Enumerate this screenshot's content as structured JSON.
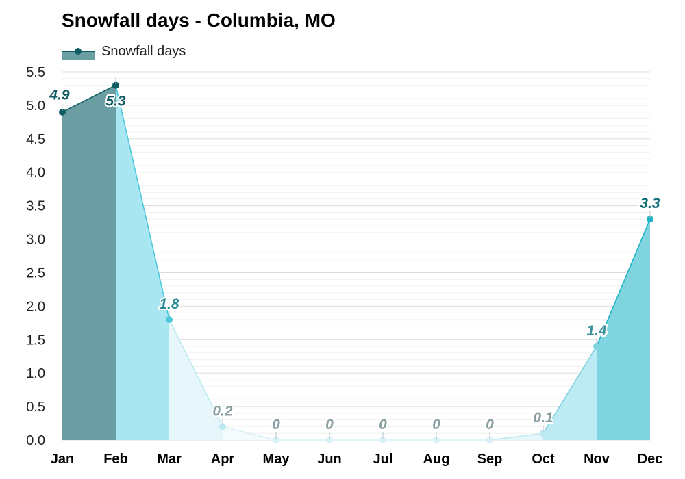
{
  "chart_data": {
    "type": "area",
    "title": "Snowfall days - Columbia, MO",
    "legend": {
      "label": "Snowfall days",
      "placement": "top-left"
    },
    "categories": [
      "Jan",
      "Feb",
      "Mar",
      "Apr",
      "May",
      "Jun",
      "Jul",
      "Aug",
      "Sep",
      "Oct",
      "Nov",
      "Dec"
    ],
    "series": [
      {
        "name": "Snowfall days",
        "values": [
          4.9,
          5.3,
          1.8,
          0.2,
          0,
          0,
          0,
          0,
          0,
          0.1,
          1.4,
          3.3
        ],
        "value_labels": [
          "4.9",
          "5.3",
          "1.8",
          "0.2",
          "0",
          "0",
          "0",
          "0",
          "0",
          "0.1",
          "1.4",
          "3.3"
        ]
      }
    ],
    "ylim": [
      0,
      5.5
    ],
    "yticks": [
      "0.0",
      "0.5",
      "1.0",
      "1.5",
      "2.0",
      "2.5",
      "3.0",
      "3.5",
      "4.0",
      "4.5",
      "5.0",
      "5.5"
    ],
    "grid": true,
    "colors": {
      "segment_fills": [
        "#6b9ea3",
        "#a8e6f1",
        "#e6f6fb",
        "#f4fbfd",
        "#f4fbfd",
        "#f4fbfd",
        "#f4fbfd",
        "#f4fbfd",
        "#e6f6fb",
        "#bdebf3",
        "#7fd4e0"
      ],
      "point_colors": [
        "#0f5d62",
        "#0f5d62",
        "#4cc8da",
        "#bde9f0",
        "#d9f1f6",
        "#d9f1f6",
        "#d9f1f6",
        "#d9f1f6",
        "#d9f1f6",
        "#bde9f0",
        "#7fd4e0",
        "#1fb3c6"
      ],
      "label_colors": [
        "#0f5d62",
        "#0f5d62",
        "#2a8a94",
        "#8a9ea2",
        "#8a9ea2",
        "#8a9ea2",
        "#8a9ea2",
        "#8a9ea2",
        "#8a9ea2",
        "#8a9ea2",
        "#3a8f98",
        "#0f6f79"
      ],
      "line_colors": [
        "#0f5d62",
        "#4cc8da",
        "#bde9f0",
        "#d9f1f6",
        "#d9f1f6",
        "#d9f1f6",
        "#d9f1f6",
        "#d9f1f6",
        "#bde9f0",
        "#7fd4e0",
        "#1fb3c6"
      ],
      "legend_line": "#0f5d62",
      "legend_fill": "#6b9ea3"
    }
  }
}
